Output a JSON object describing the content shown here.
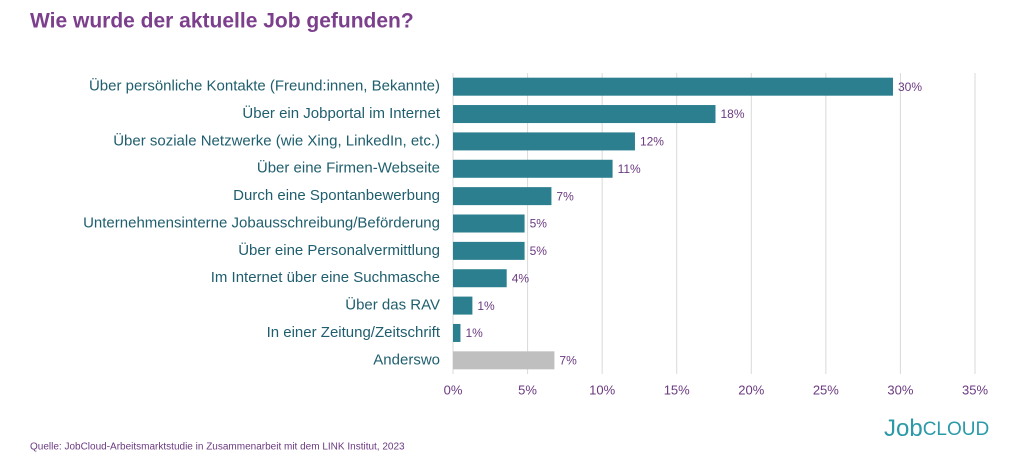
{
  "chart_data": {
    "type": "bar",
    "orientation": "horizontal",
    "title": "Wie wurde der aktuelle Job gefunden?",
    "categories": [
      "Über persönliche Kontakte (Freund:innen, Bekannte)",
      "Über ein Jobportal im Internet",
      "Über soziale Netzwerke (wie Xing, LinkedIn, etc.)",
      "Über eine Firmen-Webseite",
      "Durch eine Spontanbewerbung",
      "Unternehmensinterne Jobausschreibung/Beförderung",
      "Über eine Personalvermittlung",
      "Im Internet über eine Suchmasche",
      "Über das RAV",
      "In einer Zeitung/Zeitschrift",
      "Anderswo"
    ],
    "values": [
      29.5,
      17.6,
      12.2,
      10.7,
      6.6,
      4.8,
      4.8,
      3.6,
      1.3,
      0.5,
      6.8
    ],
    "value_labels": [
      "30%",
      "18%",
      "12%",
      "11%",
      "7%",
      "5%",
      "5%",
      "4%",
      "1%",
      "1%",
      "7%"
    ],
    "colors": [
      "#2b7f8f",
      "#2b7f8f",
      "#2b7f8f",
      "#2b7f8f",
      "#2b7f8f",
      "#2b7f8f",
      "#2b7f8f",
      "#2b7f8f",
      "#2b7f8f",
      "#2b7f8f",
      "#bfbfbf"
    ],
    "xlim": [
      0,
      35
    ],
    "xticks": [
      {
        "value": 0,
        "label": "0%"
      },
      {
        "value": 5,
        "label": "5%"
      },
      {
        "value": 10,
        "label": "10%"
      },
      {
        "value": 15,
        "label": "15%"
      },
      {
        "value": 20,
        "label": "20%"
      },
      {
        "value": 25,
        "label": "25%"
      },
      {
        "value": 30,
        "label": "30%"
      },
      {
        "value": 35,
        "label": "35%"
      }
    ],
    "grid": true,
    "source": "Quelle: JobCloud-Arbeitsmarktstudie in Zusammenarbeit mit dem LINK Institut, 2023"
  },
  "logo": {
    "part1": "Job",
    "part2": "CLOUD"
  }
}
